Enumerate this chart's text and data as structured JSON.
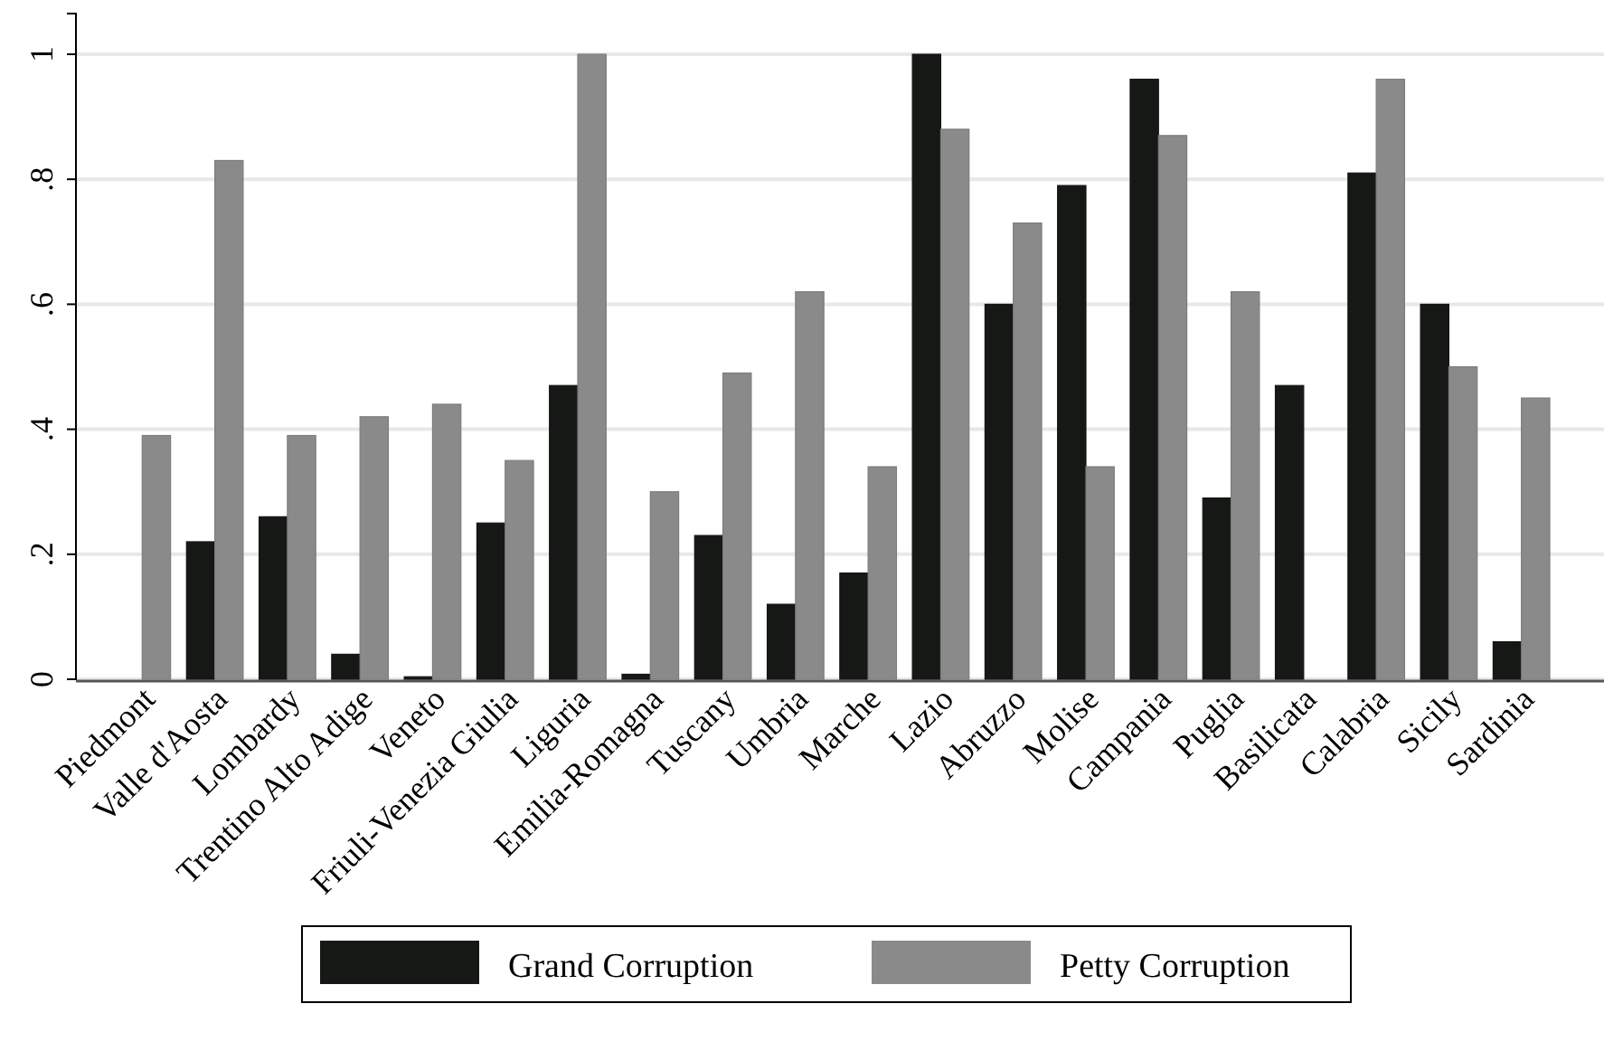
{
  "chart_data": {
    "type": "bar",
    "categories": [
      "Piedmont",
      "Valle d'Aosta",
      "Lombardy",
      "Trentino Alto Adige",
      "Veneto",
      "Friuli-Venezia Giulia",
      "Liguria",
      "Emilia-Romagna",
      "Tuscany",
      "Umbria",
      "Marche",
      "Lazio",
      "Abruzzo",
      "Molise",
      "Campania",
      "Puglia",
      "Basilicata",
      "Calabria",
      "Sicily",
      "Sardinia"
    ],
    "series": [
      {
        "name": "Grand Corruption",
        "color": "#161816",
        "values": [
          null,
          0.22,
          0.26,
          0.04,
          0.004,
          0.25,
          0.47,
          0.008,
          0.23,
          0.12,
          0.17,
          1,
          0.6,
          0.79,
          0.96,
          0.29,
          0.47,
          0.81,
          0.6,
          0.06
        ]
      },
      {
        "name": "Petty Corruption",
        "color": "#8a8a8a",
        "values": [
          0.39,
          0.83,
          0.39,
          0.42,
          0.44,
          0.35,
          1,
          0.3,
          0.49,
          0.62,
          0.34,
          0.88,
          0.73,
          0.34,
          0.87,
          0.62,
          null,
          0.96,
          0.5,
          0.45
        ]
      }
    ],
    "ylim": [
      0,
      1.065
    ],
    "yticks": [
      {
        "value": 0,
        "label": "0"
      },
      {
        "value": 0.2,
        "label": ".2"
      },
      {
        "value": 0.4,
        "label": ".4"
      },
      {
        "value": 0.6,
        "label": ".6"
      },
      {
        "value": 0.8,
        "label": ".8"
      },
      {
        "value": 1,
        "label": "1"
      }
    ],
    "grid": "y",
    "legend": "bottom"
  }
}
